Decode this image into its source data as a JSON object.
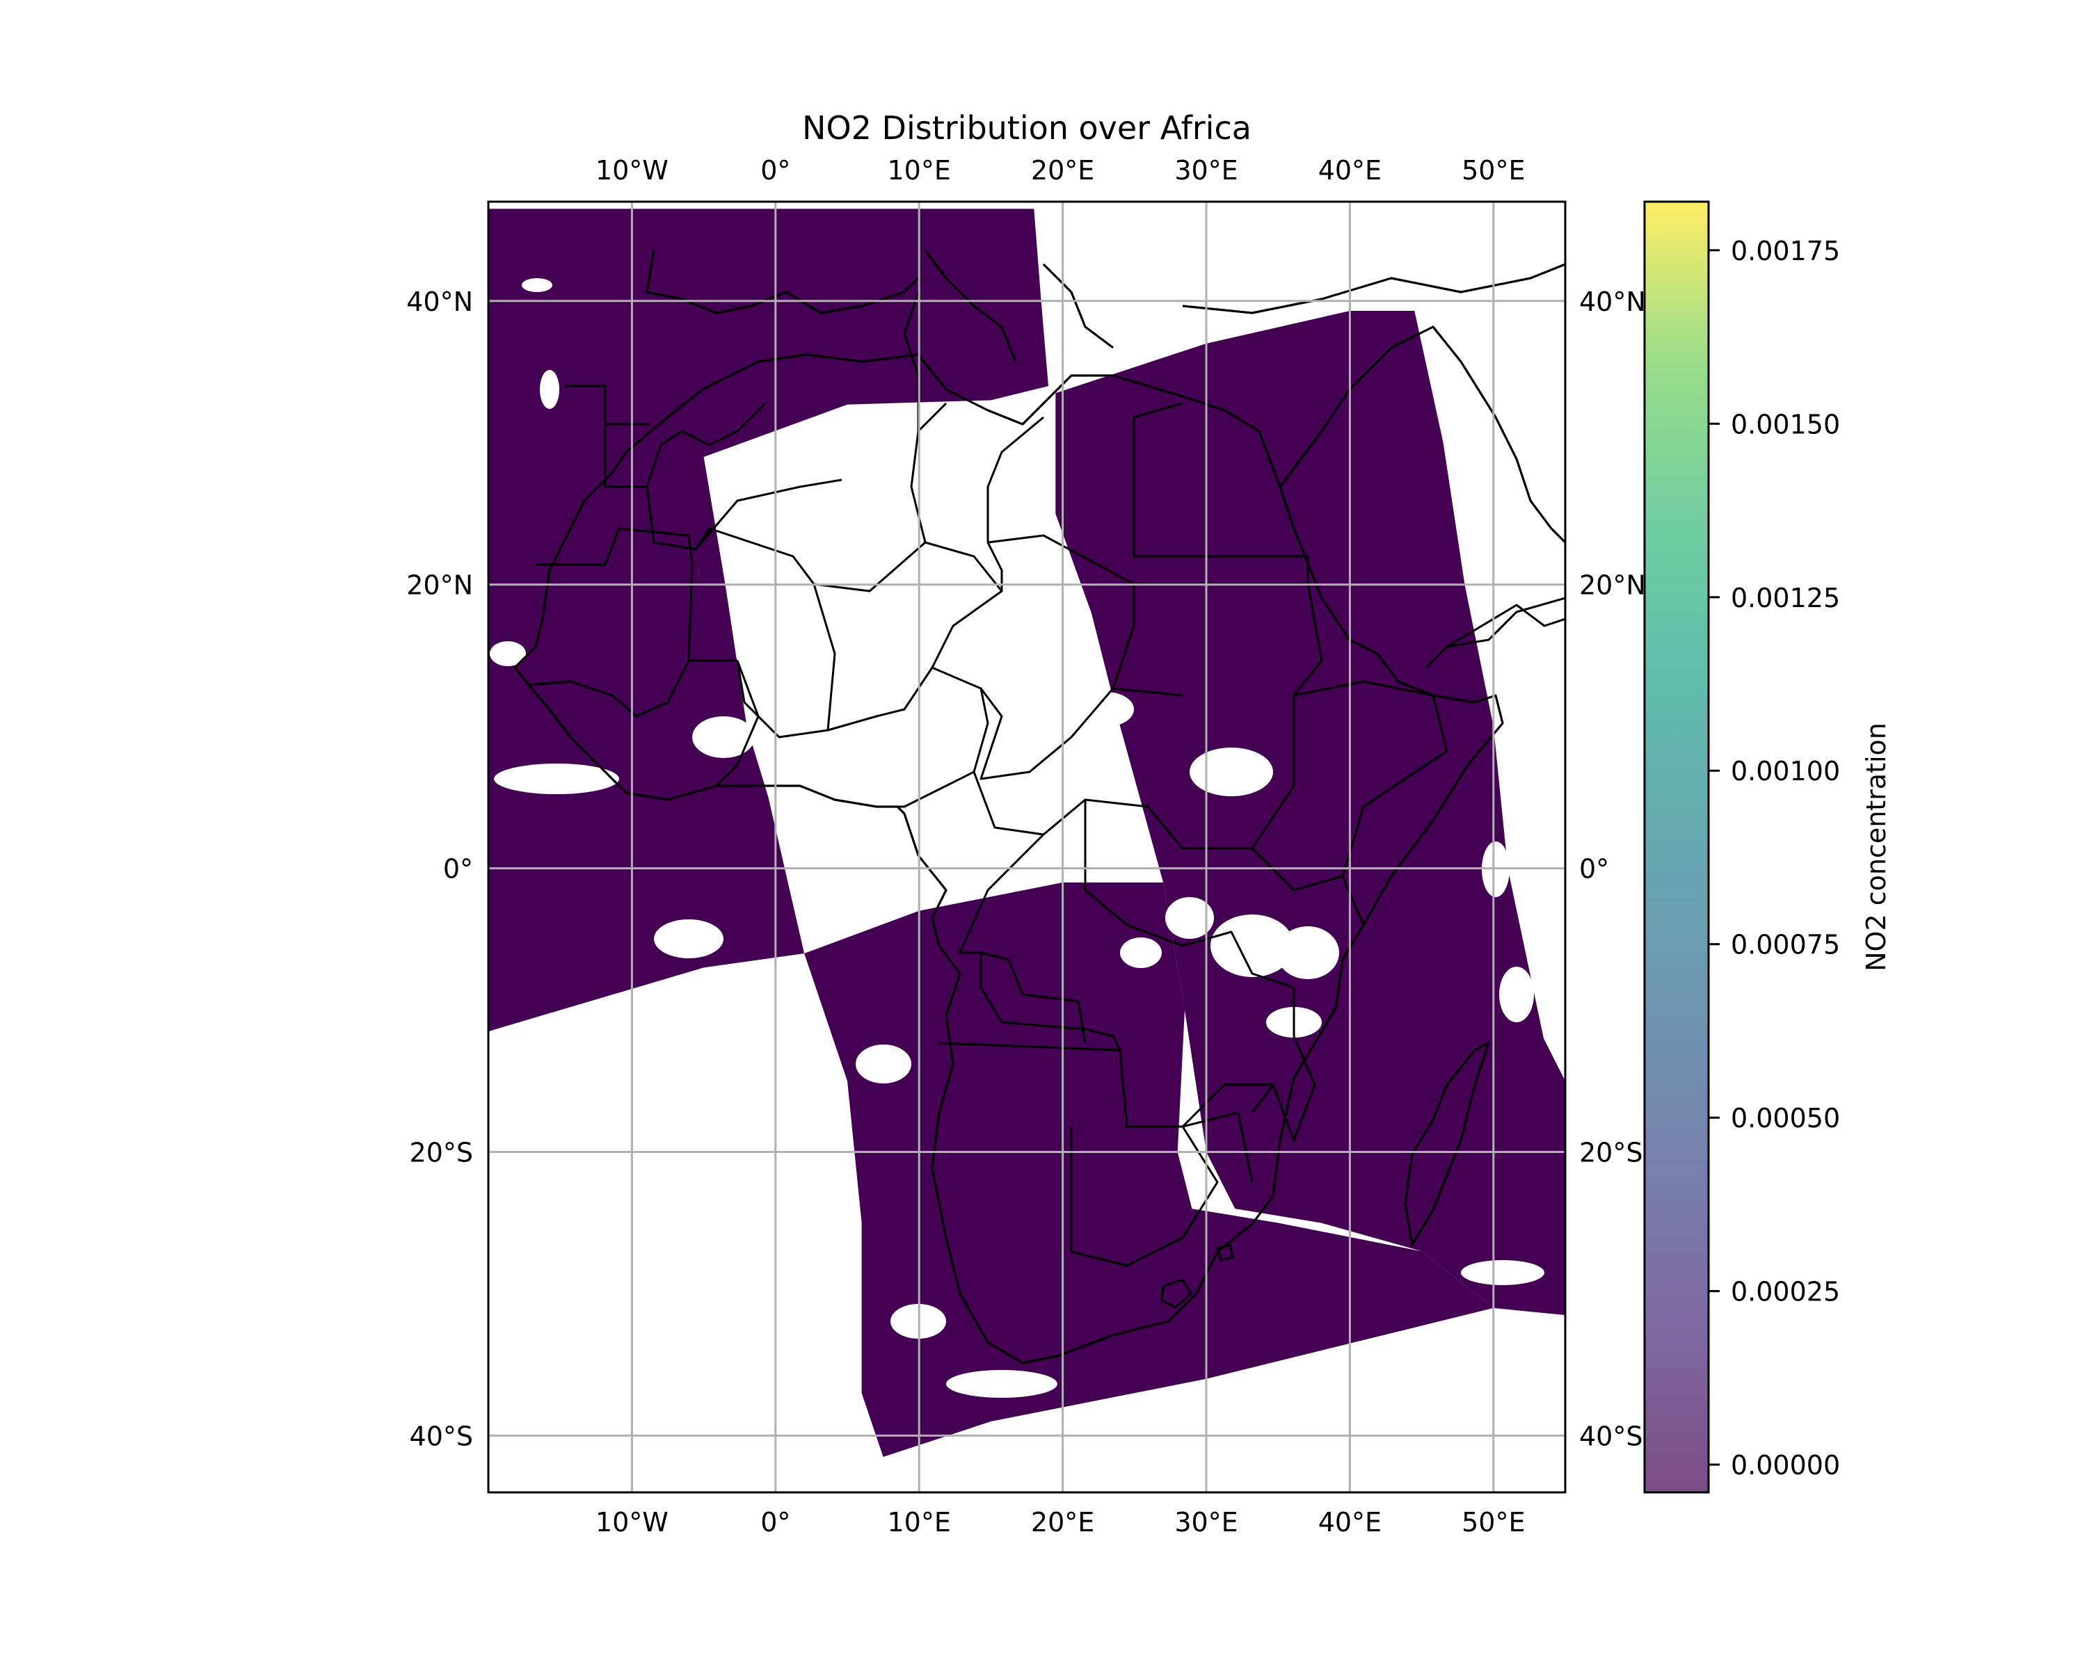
{
  "figure": {
    "title": "NO2 Distribution over Africa"
  },
  "map_data": {
    "projection": "PlateCarree",
    "extent": {
      "lon": [
        -20,
        55
      ],
      "lat": [
        -44,
        47
      ]
    },
    "gridlines": true,
    "lon_ticks": [
      {
        "value": -10,
        "label": "10°W"
      },
      {
        "value": 0,
        "label": "0°"
      },
      {
        "value": 10,
        "label": "10°E"
      },
      {
        "value": 20,
        "label": "20°E"
      },
      {
        "value": 30,
        "label": "30°E"
      },
      {
        "value": 40,
        "label": "40°E"
      },
      {
        "value": 50,
        "label": "50°E"
      }
    ],
    "lat_ticks": [
      {
        "value": 40,
        "label": "40°N"
      },
      {
        "value": 20,
        "label": "20°N"
      },
      {
        "value": 0,
        "label": "0°"
      },
      {
        "value": -20,
        "label": "20°S"
      },
      {
        "value": -40,
        "label": "40°S"
      }
    ],
    "swath_color": "#440154",
    "swaths": [
      {
        "name": "west-swath",
        "polygon": [
          [
            -20,
            46.5
          ],
          [
            18,
            46.5
          ],
          [
            18.5,
            40
          ],
          [
            19,
            34
          ],
          [
            15,
            33
          ],
          [
            5,
            32.7
          ],
          [
            -5,
            29
          ],
          [
            -3.5,
            20
          ],
          [
            -2,
            10
          ],
          [
            -0.5,
            5
          ],
          [
            2,
            -6
          ],
          [
            -5,
            -7
          ],
          [
            -15,
            -10
          ],
          [
            -20,
            -11.5
          ]
        ]
      },
      {
        "name": "central-swath",
        "polygon": [
          [
            2,
            -6
          ],
          [
            10,
            -3
          ],
          [
            20,
            -1
          ],
          [
            27,
            -1
          ],
          [
            28.5,
            -10
          ],
          [
            28,
            -20
          ],
          [
            29,
            -24
          ],
          [
            35,
            -25
          ],
          [
            45,
            -27
          ],
          [
            50,
            -31
          ],
          [
            46,
            -32
          ],
          [
            38,
            -34
          ],
          [
            30,
            -36
          ],
          [
            20,
            -38
          ],
          [
            15,
            -39
          ],
          [
            7.5,
            -41.5
          ],
          [
            6,
            -37
          ],
          [
            6,
            -25
          ],
          [
            5,
            -15
          ]
        ]
      },
      {
        "name": "east-swath",
        "polygon": [
          [
            19.5,
            33.5
          ],
          [
            24,
            35
          ],
          [
            30,
            37
          ],
          [
            40,
            39.3
          ],
          [
            44.5,
            39.3
          ],
          [
            46.5,
            30
          ],
          [
            48,
            20
          ],
          [
            50,
            10
          ],
          [
            51,
            0
          ],
          [
            53.5,
            -12
          ],
          [
            55,
            -15
          ],
          [
            55,
            -31.5
          ],
          [
            50,
            -31
          ],
          [
            45,
            -27
          ],
          [
            38,
            -25
          ],
          [
            32,
            -24
          ],
          [
            30,
            -20
          ],
          [
            28.5,
            -10
          ],
          [
            27,
            -1
          ],
          [
            24,
            10
          ],
          [
            22,
            18
          ],
          [
            19.5,
            25
          ],
          [
            19.5,
            33.5
          ]
        ]
      }
    ]
  },
  "colorbar": {
    "label": "NO2 concentration",
    "vmin": -4e-05,
    "vmax": 0.00182,
    "colormap": "viridis",
    "alpha": 0.7,
    "ticks": [
      {
        "value": 0.0,
        "label": "0.00000"
      },
      {
        "value": 0.00025,
        "label": "0.00025"
      },
      {
        "value": 0.0005,
        "label": "0.00050"
      },
      {
        "value": 0.00075,
        "label": "0.00075"
      },
      {
        "value": 0.001,
        "label": "0.00100"
      },
      {
        "value": 0.00125,
        "label": "0.00125"
      },
      {
        "value": 0.0015,
        "label": "0.00150"
      },
      {
        "value": 0.00175,
        "label": "0.00175"
      }
    ]
  }
}
